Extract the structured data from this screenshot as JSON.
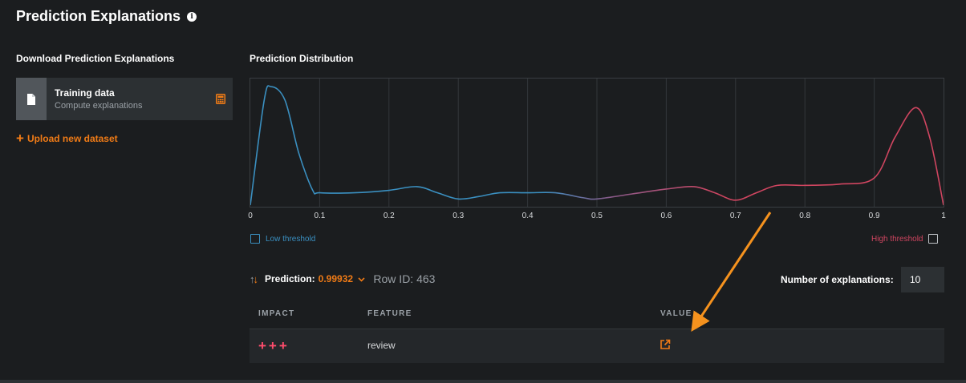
{
  "header": {
    "title": "Prediction Explanations",
    "info_icon": "info-icon"
  },
  "left": {
    "section_title": "Download Prediction Explanations",
    "dataset": {
      "name": "Training data",
      "subtitle": "Compute explanations",
      "icon": "file-icon",
      "action_icon": "calculator-icon"
    },
    "upload_label": "Upload new dataset"
  },
  "chart_data": {
    "type": "area",
    "title": "Prediction Distribution",
    "x_ticks": [
      "0",
      "0.1",
      "0.2",
      "0.3",
      "0.4",
      "0.5",
      "0.6",
      "0.7",
      "0.8",
      "0.9",
      "1"
    ],
    "xlim": [
      0,
      1
    ],
    "grid": true,
    "x": [
      0,
      0.02,
      0.03,
      0.05,
      0.07,
      0.09,
      0.1,
      0.15,
      0.2,
      0.24,
      0.27,
      0.3,
      0.33,
      0.36,
      0.4,
      0.44,
      0.48,
      0.5,
      0.55,
      0.6,
      0.64,
      0.67,
      0.7,
      0.73,
      0.76,
      0.8,
      0.85,
      0.9,
      0.93,
      0.96,
      0.98,
      1
    ],
    "y": [
      0,
      0.85,
      0.96,
      0.85,
      0.42,
      0.12,
      0.1,
      0.1,
      0.12,
      0.15,
      0.1,
      0.05,
      0.07,
      0.1,
      0.1,
      0.1,
      0.06,
      0.05,
      0.09,
      0.13,
      0.15,
      0.1,
      0.04,
      0.1,
      0.16,
      0.16,
      0.17,
      0.22,
      0.55,
      0.79,
      0.55,
      0
    ],
    "colors": {
      "low": "#3a8fc0",
      "mid": "#8a5a8a",
      "high": "#d04560"
    },
    "low_threshold_label": "Low threshold",
    "high_threshold_label": "High threshold"
  },
  "prediction": {
    "label": "Prediction:",
    "value": "0.99932",
    "row_id_label": "Row ID: 463"
  },
  "num_explanations": {
    "label": "Number of explanations:",
    "value": "10"
  },
  "table": {
    "columns": [
      "IMPACT",
      "FEATURE",
      "VALUE"
    ],
    "rows": [
      {
        "impact": "+++",
        "feature": "review",
        "value_icon": "external-link-icon"
      }
    ]
  },
  "colors": {
    "accent": "#f07b16",
    "positive_impact": "#ff4d6d",
    "background": "#1b1d1f"
  }
}
